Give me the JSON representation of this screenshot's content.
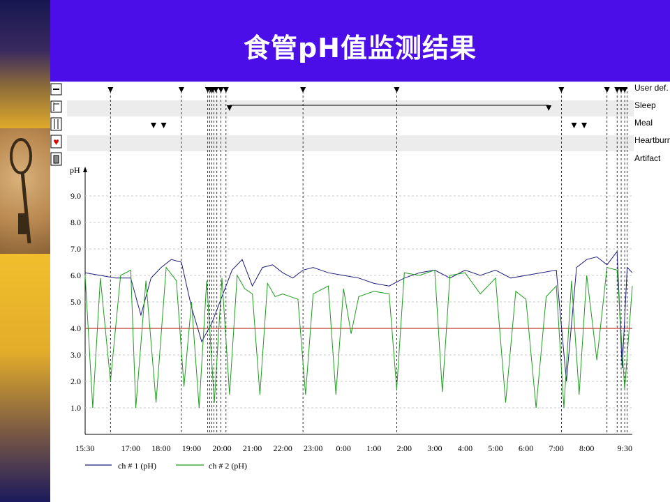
{
  "slide": {
    "title": "食管pH值监测结果"
  },
  "chart_data": {
    "type": "line",
    "x_ticks": [
      "15:30",
      "17:00",
      "18:00",
      "19:00",
      "20:00",
      "21:00",
      "22:00",
      "23:00",
      "0:00",
      "1:00",
      "2:00",
      "3:00",
      "4:00",
      "5:00",
      "6:00",
      "7:00",
      "8:00",
      "9:30"
    ],
    "y_label": "pH",
    "y_ticks": [
      "1.0",
      "2.0",
      "3.0",
      "4.0",
      "5.0",
      "6.0",
      "7.0",
      "8.0",
      "9.0"
    ],
    "ylim": [
      0,
      10
    ],
    "grid": true,
    "threshold": {
      "value": 4.0,
      "color": "#c0392b"
    },
    "event_rows": [
      "User def.",
      "Sleep",
      "Meal",
      "Heartburn",
      "Artifact"
    ],
    "events": {
      "user_def": [
        "16:20",
        "18:40",
        "19:32",
        "19:38",
        "19:42",
        "19:48",
        "19:58",
        "20:08",
        "22:40",
        "1:45",
        "7:10",
        "8:40",
        "9:00",
        "9:08",
        "9:15"
      ],
      "sleep": {
        "start": "20:15",
        "end": "6:45"
      },
      "meal": [
        "17:45",
        "18:05",
        "7:35",
        "7:55"
      ],
      "event_lines": [
        "16:20",
        "18:40",
        "19:32",
        "19:36",
        "19:40",
        "19:44",
        "19:50",
        "19:58",
        "20:08",
        "22:40",
        "1:45",
        "7:10",
        "8:40",
        "9:00",
        "9:08",
        "9:15",
        "9:20"
      ]
    },
    "series": [
      {
        "name": "ch # 1 (pH)",
        "color": "#1c1c7a",
        "points": [
          [
            "15:30",
            6.1
          ],
          [
            "16:00",
            6.0
          ],
          [
            "16:30",
            5.9
          ],
          [
            "17:00",
            5.9
          ],
          [
            "17:20",
            4.5
          ],
          [
            "17:40",
            5.9
          ],
          [
            "18:00",
            6.3
          ],
          [
            "18:20",
            6.6
          ],
          [
            "18:40",
            6.5
          ],
          [
            "19:00",
            4.8
          ],
          [
            "19:20",
            3.5
          ],
          [
            "19:40",
            4.2
          ],
          [
            "20:00",
            5.2
          ],
          [
            "20:20",
            6.2
          ],
          [
            "20:40",
            6.6
          ],
          [
            "21:00",
            5.6
          ],
          [
            "21:20",
            6.3
          ],
          [
            "21:40",
            6.4
          ],
          [
            "22:00",
            6.1
          ],
          [
            "22:20",
            5.9
          ],
          [
            "22:40",
            6.2
          ],
          [
            "23:00",
            6.3
          ],
          [
            "23:30",
            6.1
          ],
          [
            "0:00",
            6.0
          ],
          [
            "0:30",
            5.9
          ],
          [
            "1:00",
            5.7
          ],
          [
            "1:30",
            5.6
          ],
          [
            "2:00",
            5.9
          ],
          [
            "2:30",
            6.1
          ],
          [
            "3:00",
            6.2
          ],
          [
            "3:30",
            5.9
          ],
          [
            "4:00",
            6.2
          ],
          [
            "4:30",
            6.0
          ],
          [
            "5:00",
            6.2
          ],
          [
            "5:30",
            5.9
          ],
          [
            "6:00",
            6.0
          ],
          [
            "6:30",
            6.1
          ],
          [
            "7:00",
            6.2
          ],
          [
            "7:20",
            2.0
          ],
          [
            "7:40",
            6.3
          ],
          [
            "8:00",
            6.6
          ],
          [
            "8:20",
            6.7
          ],
          [
            "8:40",
            6.4
          ],
          [
            "9:00",
            6.9
          ],
          [
            "9:10",
            2.5
          ],
          [
            "9:20",
            6.3
          ],
          [
            "9:30",
            6.1
          ]
        ]
      },
      {
        "name": "ch # 2 (pH)",
        "color": "#1e9b1e",
        "points": [
          [
            "15:30",
            6.0
          ],
          [
            "15:45",
            1.0
          ],
          [
            "16:00",
            5.9
          ],
          [
            "16:20",
            2.0
          ],
          [
            "16:40",
            6.0
          ],
          [
            "17:00",
            6.2
          ],
          [
            "17:10",
            1.0
          ],
          [
            "17:30",
            5.8
          ],
          [
            "17:50",
            1.2
          ],
          [
            "18:10",
            6.3
          ],
          [
            "18:30",
            5.8
          ],
          [
            "18:45",
            1.8
          ],
          [
            "19:00",
            5.0
          ],
          [
            "19:15",
            1.0
          ],
          [
            "19:30",
            5.8
          ],
          [
            "19:45",
            1.2
          ],
          [
            "20:00",
            5.9
          ],
          [
            "20:15",
            1.5
          ],
          [
            "20:30",
            6.0
          ],
          [
            "20:45",
            5.5
          ],
          [
            "21:00",
            5.3
          ],
          [
            "21:15",
            1.5
          ],
          [
            "21:30",
            5.7
          ],
          [
            "21:45",
            5.2
          ],
          [
            "22:00",
            5.3
          ],
          [
            "22:30",
            5.1
          ],
          [
            "22:45",
            1.5
          ],
          [
            "23:00",
            5.3
          ],
          [
            "23:30",
            5.6
          ],
          [
            "23:45",
            1.5
          ],
          [
            "0:00",
            5.5
          ],
          [
            "0:15",
            3.8
          ],
          [
            "0:30",
            5.2
          ],
          [
            "1:00",
            5.4
          ],
          [
            "1:30",
            5.3
          ],
          [
            "1:45",
            1.7
          ],
          [
            "2:00",
            6.1
          ],
          [
            "2:30",
            6.0
          ],
          [
            "3:00",
            6.2
          ],
          [
            "3:15",
            1.6
          ],
          [
            "3:30",
            6.0
          ],
          [
            "4:00",
            6.1
          ],
          [
            "4:30",
            5.3
          ],
          [
            "5:00",
            5.9
          ],
          [
            "5:20",
            1.2
          ],
          [
            "5:40",
            5.4
          ],
          [
            "6:00",
            5.1
          ],
          [
            "6:20",
            1.0
          ],
          [
            "6:40",
            5.2
          ],
          [
            "7:00",
            5.6
          ],
          [
            "7:15",
            1.0
          ],
          [
            "7:30",
            5.8
          ],
          [
            "7:45",
            1.5
          ],
          [
            "8:00",
            6.0
          ],
          [
            "8:20",
            2.8
          ],
          [
            "8:40",
            6.3
          ],
          [
            "9:00",
            6.2
          ],
          [
            "9:15",
            1.7
          ],
          [
            "9:30",
            5.6
          ]
        ]
      }
    ]
  },
  "sidebar_icons": [
    "minus-icon",
    "flag-icon",
    "fork-knife-icon",
    "heart-icon",
    "trash-icon"
  ]
}
